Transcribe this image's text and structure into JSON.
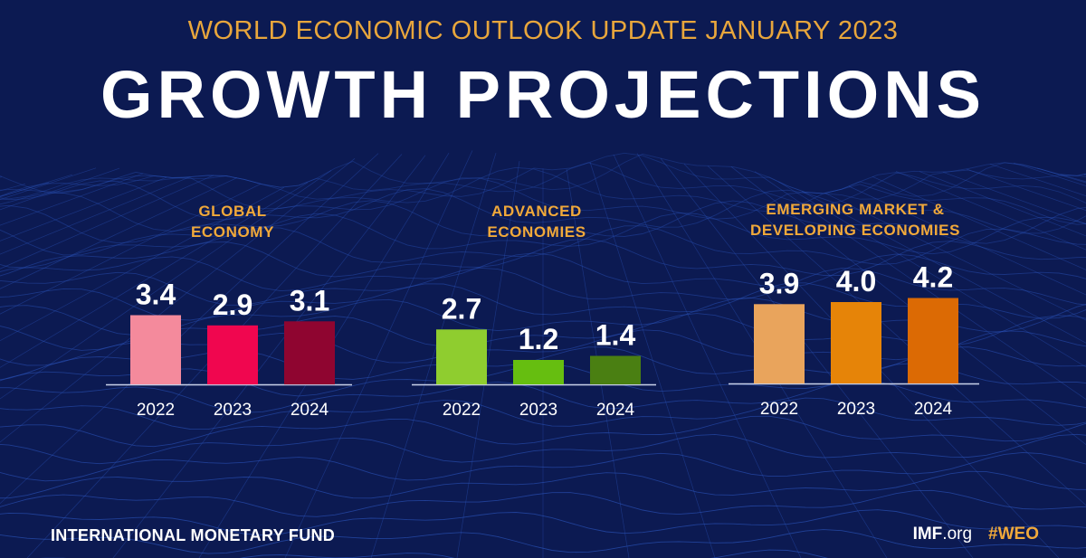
{
  "header": {
    "supertitle": "WORLD ECONOMIC OUTLOOK UPDATE JANUARY 2023",
    "title": "GROWTH PROJECTIONS"
  },
  "chart_data": [
    {
      "type": "bar",
      "title_lines": [
        "GLOBAL",
        "ECONOMY"
      ],
      "categories": [
        "2022",
        "2023",
        "2024"
      ],
      "values": [
        3.4,
        2.9,
        3.1
      ],
      "colors": [
        "#f48a9c",
        "#f0064f",
        "#8f0530"
      ],
      "ylim": [
        0,
        5
      ],
      "grid": false
    },
    {
      "type": "bar",
      "title_lines": [
        "ADVANCED",
        "ECONOMIES"
      ],
      "categories": [
        "2022",
        "2023",
        "2024"
      ],
      "values": [
        2.7,
        1.2,
        1.4
      ],
      "colors": [
        "#8fcd2f",
        "#66be10",
        "#4a7f12"
      ],
      "ylim": [
        0,
        5
      ],
      "grid": false
    },
    {
      "type": "bar",
      "title_lines": [
        "EMERGING MARKET &",
        "DEVELOPING ECONOMIES"
      ],
      "categories": [
        "2022",
        "2023",
        "2024"
      ],
      "values": [
        3.9,
        4.0,
        4.2
      ],
      "colors": [
        "#e9a45c",
        "#e68408",
        "#dc6a04"
      ],
      "ylim": [
        0,
        5
      ],
      "grid": false
    }
  ],
  "footer": {
    "organization": "INTERNATIONAL MONETARY FUND",
    "site_bold": "IMF",
    "site_rest": ".org",
    "hashtag": "#WEO"
  },
  "colors": {
    "background": "#0c1a52",
    "accent": "#f1a93a",
    "mesh": "#2a52b8"
  }
}
